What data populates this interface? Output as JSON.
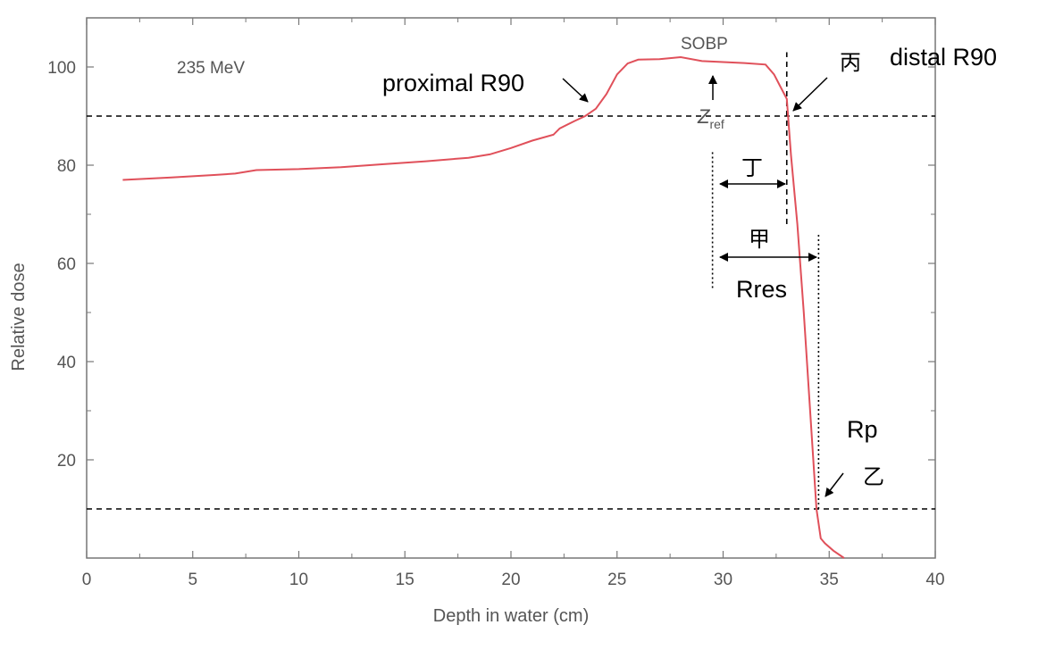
{
  "chart_data": {
    "type": "line",
    "title": "",
    "xlabel": "Depth in water (cm)",
    "ylabel": "Relative dose",
    "xlim": [
      0,
      40
    ],
    "ylim": [
      0,
      110
    ],
    "xticks": [
      0,
      5,
      10,
      15,
      20,
      25,
      30,
      35,
      40
    ],
    "yticks": [
      20,
      40,
      60,
      80,
      100
    ],
    "grid": false,
    "series": [
      {
        "color": "#e0505a",
        "x": [
          1.7,
          4,
          6,
          7,
          8,
          10,
          12,
          14,
          16,
          18,
          19,
          20,
          21,
          22,
          22.3,
          23,
          23.5,
          24,
          24.5,
          25,
          25.5,
          26,
          27,
          28,
          29,
          30,
          31,
          32,
          32.4,
          32.7,
          33.0,
          33.2,
          33.5,
          33.8,
          34.1,
          34.4,
          34.6,
          34.8,
          35.2,
          35.7
        ],
        "y": [
          77,
          77.5,
          78,
          78.3,
          79,
          79.2,
          79.6,
          80.2,
          80.8,
          81.5,
          82.2,
          83.5,
          85,
          86.2,
          87.5,
          89,
          90,
          91.5,
          94.5,
          98.5,
          100.7,
          101.5,
          101.6,
          102,
          101.2,
          101,
          100.8,
          100.5,
          98.5,
          96,
          93.5,
          82,
          68,
          50,
          30,
          10,
          4,
          3,
          1.5,
          0
        ]
      }
    ],
    "reference_lines": [
      {
        "axis": "y",
        "value": 90,
        "style": "dashed"
      },
      {
        "axis": "y",
        "value": 10,
        "style": "dashed"
      },
      {
        "axis": "x",
        "value": 33.0,
        "style": "dashed",
        "y_range": [
          68,
          103
        ]
      },
      {
        "axis": "x",
        "value": 29.5,
        "style": "dotted",
        "y_range": [
          55,
          83
        ]
      },
      {
        "axis": "x",
        "value": 34.5,
        "style": "dotted",
        "y_range": [
          10,
          66
        ]
      }
    ],
    "annotations": {
      "energy": "235 MeV",
      "sobp": "SOBP",
      "zref": "Z",
      "zref_sub": "ref",
      "proximal": "proximal R90",
      "distal": "distal R90",
      "bing": "丙",
      "ding": "丁",
      "jia": "甲",
      "rres": "Rres",
      "rp": "Rp",
      "yi": "乙"
    }
  }
}
